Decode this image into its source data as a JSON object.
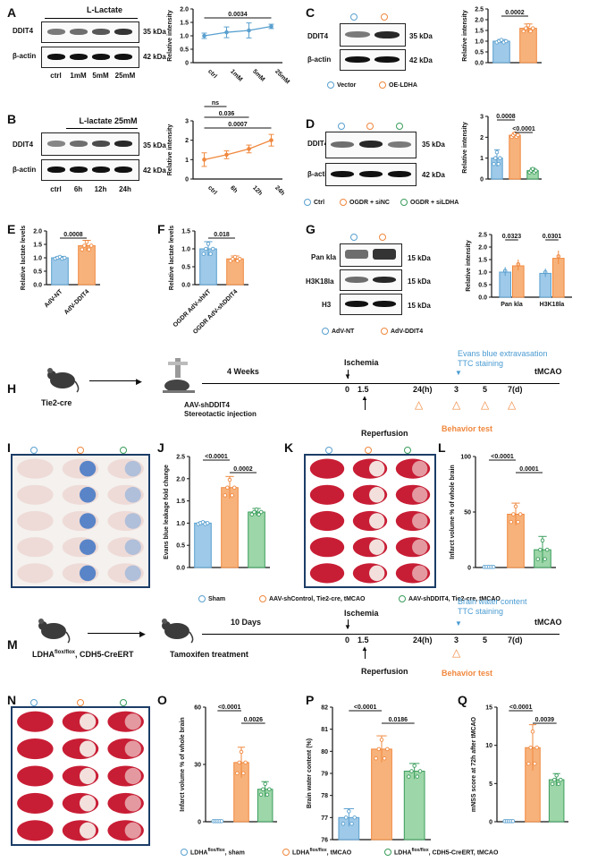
{
  "colors": {
    "blue": "#5aa0cf",
    "orange": "#f0883e",
    "green": "#3a9d5c",
    "bluefill": "#9ec9e8",
    "orangefill": "#f7b27b",
    "greenfill": "#9dd6a8",
    "timeline_blue": "#4a9bd1"
  },
  "panelA": {
    "label": "A",
    "treat": "L-Lactate",
    "rows": [
      "DDIT4",
      "β-actin"
    ],
    "kda": [
      "35 kDa",
      "42 kDa"
    ],
    "lanes": [
      "ctrl",
      "1mM",
      "5mM",
      "25mM"
    ]
  },
  "panelB": {
    "label": "B",
    "treat": "L-lactate 25mM",
    "rows": [
      "DDIT4",
      "β-actin"
    ],
    "kda": [
      "35 kDa",
      "42 kDa"
    ],
    "lanes": [
      "ctrl",
      "6h",
      "12h",
      "24h"
    ]
  },
  "panelC": {
    "label": "C",
    "rows": [
      "DDIT4",
      "β-actin"
    ],
    "kda": [
      "35 kDa",
      "42 kDa"
    ],
    "legend": [
      "Vector",
      "OE-LDHA"
    ]
  },
  "panelD": {
    "label": "D",
    "rows": [
      "DDIT4",
      "β-actin"
    ],
    "kda": [
      "35 kDa",
      "42 kDa"
    ],
    "legend": [
      "Ctrl",
      "OGDR + siNC",
      "OGDR + siLDHA"
    ]
  },
  "panelE": {
    "label": "E"
  },
  "panelF": {
    "label": "F"
  },
  "panelG": {
    "label": "G",
    "rows": [
      "Pan kla",
      "H3K18la",
      "H3"
    ],
    "kda": [
      "15 kDa",
      "15 kDa",
      "15 kDa"
    ],
    "legend": [
      "AdV-NT",
      "AdV-DDIT4"
    ]
  },
  "panelH": {
    "label": "H",
    "mouse": "Tie2-cre",
    "injection1": "AAV-shDDIT4",
    "injection2": "Stereotactic injection",
    "weeks": "4 Weeks",
    "ischemia": "Ischemia",
    "reperfusion": "Reperfusion",
    "evans1": "Evans blue extravasation",
    "evans2": "TTC staining",
    "behavior": "Behavior test",
    "end": "tMCAO",
    "ticks": [
      "0",
      "1.5",
      "24(h)",
      "3",
      "5",
      "7(d)"
    ]
  },
  "panelI": {
    "label": "I"
  },
  "panelK": {
    "label": "K"
  },
  "legendHL": [
    "Sham",
    "AAV-shControl, Tie2-cre, tMCAO",
    "AAV-shDDIT4, Tie2-cre, tMCAO"
  ],
  "panelM": {
    "label": "M",
    "mouse_main": "LDHA",
    "mouse_sup": "flox/flox",
    "mouse_rest": ", CDH5-CreERT",
    "treat": "Tamoxifen treatment",
    "days": "10 Days",
    "ischemia": "Ischemia",
    "reperfusion": "Reperfusion",
    "water1": "Brain water content",
    "water2": "TTC staining",
    "behavior": "Behavior test",
    "end": "tMCAO",
    "ticks": [
      "0",
      "1.5",
      "24(h)",
      "3",
      "5",
      "7(d)"
    ]
  },
  "panelN": {
    "label": "N"
  },
  "legendOQ": [
    {
      "main": "LDHA",
      "sup": "flox/flox",
      "rest": ", sham"
    },
    {
      "main": "LDHA",
      "sup": "flox/flox",
      "rest": ", tMCAO"
    },
    {
      "main": "LDHA",
      "sup": "flox/flox",
      "rest": ", CDH5-CreERT, tMCAO"
    }
  ],
  "chart_data": [
    {
      "id": "A",
      "type": "line",
      "ylabel": "Relative intensity",
      "categories": [
        "ctrl",
        "1mM",
        "5mM",
        "25mM"
      ],
      "values": [
        1.0,
        1.13,
        1.2,
        1.35
      ],
      "errors": [
        0.1,
        0.2,
        0.28,
        0.08
      ],
      "ylim": [
        0,
        2.0
      ],
      "yticks": [
        "0",
        "0.5",
        "1.0",
        "1.5",
        "2.0"
      ],
      "sig": [
        {
          "from": 0,
          "to": 3,
          "text": "0.0034"
        }
      ]
    },
    {
      "id": "B",
      "type": "line",
      "ylabel": "Relative intensity",
      "categories": [
        "ctrl",
        "6h",
        "12h",
        "24h"
      ],
      "values": [
        1.0,
        1.25,
        1.55,
        2.0
      ],
      "errors": [
        0.35,
        0.2,
        0.2,
        0.3
      ],
      "ylim": [
        0,
        3
      ],
      "yticks": [
        "0",
        "1",
        "2",
        "3"
      ],
      "sig": [
        {
          "from": 0,
          "to": 1,
          "text": "ns"
        },
        {
          "from": 0,
          "to": 2,
          "text": "0.036"
        },
        {
          "from": 0,
          "to": 3,
          "text": "0.0007"
        }
      ]
    },
    {
      "id": "C",
      "type": "bar",
      "ylabel": "Relative intensity",
      "categories": [
        "Vector",
        "OE-LDHA"
      ],
      "values": [
        1.0,
        1.6
      ],
      "errors": [
        0.08,
        0.2
      ],
      "ylim": [
        0,
        2.5
      ],
      "yticks": [
        "0.0",
        "0.5",
        "1.0",
        "1.5",
        "2.0",
        "2.5"
      ],
      "sig": [
        {
          "from": 0,
          "to": 1,
          "text": "0.0002"
        }
      ]
    },
    {
      "id": "D",
      "type": "bar",
      "ylabel": "Relative intensity",
      "categories": [
        "Ctrl",
        "OGDR + siNC",
        "OGDR + siLDHA"
      ],
      "values": [
        1.0,
        2.1,
        0.4
      ],
      "errors": [
        0.4,
        0.12,
        0.12
      ],
      "ylim": [
        0,
        3
      ],
      "yticks": [
        "0",
        "1",
        "2",
        "3"
      ],
      "sig": [
        {
          "from": 0,
          "to": 1,
          "text": "0.0008"
        },
        {
          "from": 1,
          "to": 2,
          "text": "<0.0001"
        }
      ]
    },
    {
      "id": "E",
      "type": "bar",
      "ylabel": "Relative lactate levels",
      "categories": [
        "AdV-NT",
        "AdV-DDIT4"
      ],
      "values": [
        1.0,
        1.45
      ],
      "errors": [
        0.05,
        0.2
      ],
      "ylim": [
        0,
        2.0
      ],
      "yticks": [
        "0.0",
        "0.5",
        "1.0",
        "1.5",
        "2.0"
      ],
      "sig": [
        {
          "from": 0,
          "to": 1,
          "text": "0.0008"
        }
      ]
    },
    {
      "id": "F",
      "type": "bar",
      "ylabel": "Relative lactate levels",
      "categories": [
        "OGDR AdV-shNT",
        "OGDR AdV-shDDIT4"
      ],
      "values": [
        1.0,
        0.72
      ],
      "errors": [
        0.2,
        0.08
      ],
      "ylim": [
        0,
        1.5
      ],
      "yticks": [
        "0.0",
        "0.5",
        "1.0",
        "1.5"
      ],
      "sig": [
        {
          "from": 0,
          "to": 1,
          "text": "0.018"
        }
      ]
    },
    {
      "id": "G",
      "type": "bar",
      "ylabel": "Relative intensity",
      "categories": [
        "Pan kla",
        "H3K18la"
      ],
      "series": [
        {
          "name": "AdV-NT",
          "values": [
            1.0,
            0.95
          ]
        },
        {
          "name": "AdV-DDIT4",
          "values": [
            1.25,
            1.55
          ]
        }
      ],
      "ylim": [
        0,
        2.5
      ],
      "yticks": [
        "0.0",
        "0.5",
        "1.0",
        "1.5",
        "2.0",
        "2.5"
      ],
      "sig": [
        {
          "text": "0.0323"
        },
        {
          "text": "0.0301"
        }
      ]
    },
    {
      "id": "J",
      "type": "bar",
      "ylabel": "Evans blue leakage fold change",
      "categories": [
        "Sham",
        "AAV-shControl, Tie2-cre, tMCAO",
        "AAV-shDDIT4, Tie2-cre, tMCAO"
      ],
      "values": [
        1.0,
        1.8,
        1.25
      ],
      "errors": [
        0.03,
        0.25,
        0.08
      ],
      "ylim": [
        0,
        2.5
      ],
      "yticks": [
        "0.0",
        "0.5",
        "1.0",
        "1.5",
        "2.0",
        "2.5"
      ],
      "sig": [
        {
          "from": 0,
          "to": 1,
          "text": "<0.0001"
        },
        {
          "from": 1,
          "to": 2,
          "text": "0.0002"
        }
      ]
    },
    {
      "id": "L",
      "type": "bar",
      "ylabel": "Infarct volume % of whole brain",
      "categories": [
        "Sham",
        "AAV-shControl, Tie2-cre, tMCAO",
        "AAV-shDDIT4, Tie2-cre, tMCAO"
      ],
      "values": [
        0,
        48,
        16
      ],
      "errors": [
        0,
        10,
        12
      ],
      "ylim": [
        0,
        100
      ],
      "yticks": [
        "0",
        "50",
        "100"
      ],
      "sig": [
        {
          "from": 0,
          "to": 1,
          "text": "<0.0001"
        },
        {
          "from": 1,
          "to": 2,
          "text": "0.0001"
        }
      ]
    },
    {
      "id": "O",
      "type": "bar",
      "ylabel": "Infarct volume % of whole brain",
      "categories": [
        "LDHA flox/flox, sham",
        "LDHA flox/flox, tMCAO",
        "LDHA flox/flox, CDH5-CreERT, tMCAO"
      ],
      "values": [
        0,
        31,
        17
      ],
      "errors": [
        0,
        8,
        4
      ],
      "ylim": [
        0,
        60
      ],
      "yticks": [
        "0",
        "30",
        "60"
      ],
      "sig": [
        {
          "from": 0,
          "to": 1,
          "text": "<0.0001"
        },
        {
          "from": 1,
          "to": 2,
          "text": "0.0026"
        }
      ]
    },
    {
      "id": "P",
      "type": "bar",
      "ylabel": "Brain water content (%)",
      "categories": [
        "LDHA flox/flox, sham",
        "LDHA flox/flox, tMCAO",
        "LDHA flox/flox, CDH5-CreERT, tMCAO"
      ],
      "values": [
        77.0,
        80.1,
        79.1
      ],
      "errors": [
        0.4,
        0.6,
        0.35
      ],
      "ylim": [
        76,
        82
      ],
      "yticks": [
        "76",
        "77",
        "78",
        "79",
        "80",
        "81",
        "82"
      ],
      "sig": [
        {
          "from": 0,
          "to": 1,
          "text": "<0.0001"
        },
        {
          "from": 1,
          "to": 2,
          "text": "0.0186"
        }
      ]
    },
    {
      "id": "Q",
      "type": "bar",
      "ylabel": "mNSS score at 72h after tMCAO",
      "categories": [
        "LDHA flox/flox, sham",
        "LDHA flox/flox, tMCAO",
        "LDHA flox/flox, CDH5-CreERT, tMCAO"
      ],
      "values": [
        0,
        9.7,
        5.5
      ],
      "errors": [
        0,
        3,
        0.8
      ],
      "ylim": [
        0,
        15
      ],
      "yticks": [
        "0",
        "5",
        "10",
        "15"
      ],
      "sig": [
        {
          "from": 0,
          "to": 1,
          "text": "<0.0001"
        },
        {
          "from": 1,
          "to": 2,
          "text": "0.0039"
        }
      ]
    }
  ]
}
